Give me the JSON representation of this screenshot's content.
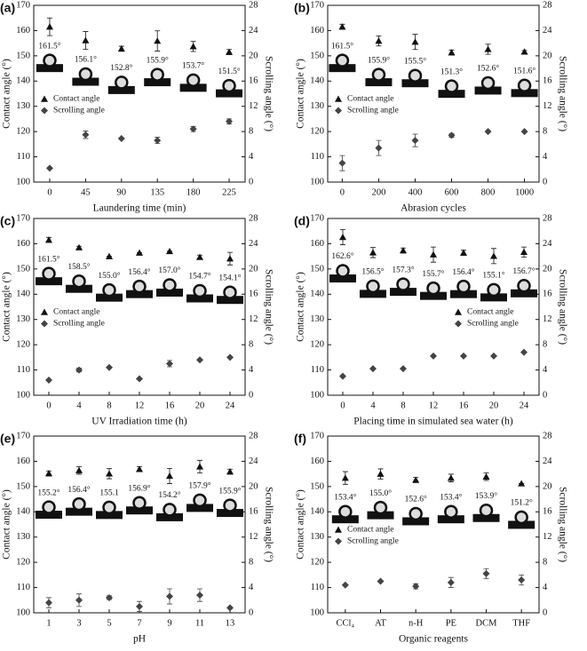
{
  "chart_data": [
    {
      "type": "scatter",
      "panel_label": "(a)",
      "x_label": "Laundering time (min)",
      "y_label": "Contact angle (°)",
      "y2_label": "Scrolling angle (°)",
      "x": [
        0,
        45,
        90,
        135,
        180,
        225
      ],
      "xlim": [
        -20,
        245
      ],
      "xticks": [
        0,
        45,
        90,
        135,
        180,
        225
      ],
      "ylim": [
        100,
        170
      ],
      "yticks": [
        100,
        110,
        120,
        130,
        140,
        150,
        160,
        170
      ],
      "y2lim": [
        0,
        28
      ],
      "y2ticks": [
        0,
        4,
        8,
        12,
        16,
        20,
        24,
        28
      ],
      "legend": "center left",
      "series": [
        {
          "name": "Contact angle",
          "marker": "triangle",
          "color": "#111111",
          "values": [
            161.5,
            156.1,
            152.8,
            155.9,
            153.7,
            151.5
          ],
          "value_labels": [
            "161.5°",
            "156.1°",
            "152.8°",
            "155.9°",
            "153.7°",
            "151.5°"
          ],
          "errors": [
            3.5,
            3.5,
            1,
            4,
            2,
            1
          ]
        },
        {
          "name": "Scrolling angle",
          "axis": "y2",
          "marker": "diamond",
          "color": "#444444",
          "values": [
            2.2,
            7.5,
            6.9,
            6.6,
            8.4,
            9.6
          ],
          "errors": [
            0,
            0.6,
            0,
            0.5,
            0.4,
            0.4
          ]
        }
      ]
    },
    {
      "type": "scatter",
      "panel_label": "(b)",
      "x_label": "Abrasion cycles",
      "y_label": "Contact angle (°)",
      "y2_label": "Scrolling angle (°)",
      "x": [
        0,
        200,
        400,
        600,
        800,
        1000
      ],
      "xlim": [
        -80,
        1080
      ],
      "xticks": [
        0,
        200,
        400,
        600,
        800,
        1000
      ],
      "ylim": [
        100,
        170
      ],
      "yticks": [
        100,
        110,
        120,
        130,
        140,
        150,
        160,
        170
      ],
      "y2lim": [
        0,
        28
      ],
      "y2ticks": [
        0,
        4,
        8,
        12,
        16,
        20,
        24,
        28
      ],
      "legend": "center left",
      "series": [
        {
          "name": "Contact angle",
          "marker": "triangle",
          "color": "#111111",
          "values": [
            161.5,
            155.9,
            155.5,
            151.3,
            152.6,
            151.6
          ],
          "value_labels": [
            "161.5°",
            "155.9°",
            "155.5°",
            "151.3°",
            "152.6°",
            "151.6°"
          ],
          "errors": [
            1,
            2,
            3,
            1,
            2,
            0.5
          ]
        },
        {
          "name": "Scrolling angle",
          "axis": "y2",
          "marker": "diamond",
          "color": "#444444",
          "values": [
            3.0,
            5.4,
            6.6,
            7.4,
            8.0,
            8.0
          ],
          "errors": [
            1.2,
            1.2,
            1.0,
            0.3,
            0,
            0
          ]
        }
      ]
    },
    {
      "type": "scatter",
      "panel_label": "(c)",
      "x_label": "UV Irradiation time (h)",
      "y_label": "Contact angle (°)",
      "y2_label": "Scrolling angle (°)",
      "x": [
        0,
        4,
        8,
        12,
        16,
        20,
        24
      ],
      "xlim": [
        -2,
        26
      ],
      "xticks": [
        0,
        4,
        8,
        12,
        16,
        20,
        24
      ],
      "ylim": [
        100,
        170
      ],
      "yticks": [
        100,
        110,
        120,
        130,
        140,
        150,
        160,
        170
      ],
      "y2lim": [
        0,
        28
      ],
      "y2ticks": [
        0,
        4,
        8,
        12,
        16,
        20,
        24,
        28
      ],
      "legend": "center left",
      "series": [
        {
          "name": "Contact angle",
          "marker": "triangle",
          "color": "#111111",
          "values": [
            161.5,
            158.5,
            155.0,
            156.4,
            157.0,
            154.7,
            154.1
          ],
          "value_labels": [
            "161.5°",
            "158.5°",
            "155.0°",
            "156.4°",
            "157.0°",
            "154.7°",
            "154.1°"
          ],
          "errors": [
            1,
            0.5,
            0,
            0,
            0,
            0.8,
            2.5
          ]
        },
        {
          "name": "Scrolling angle",
          "axis": "y2",
          "marker": "diamond",
          "color": "#444444",
          "values": [
            2.4,
            4.0,
            4.4,
            2.6,
            5.0,
            5.6,
            6.0
          ],
          "errors": [
            0,
            0.3,
            0,
            0,
            0.5,
            0,
            0
          ]
        }
      ]
    },
    {
      "type": "scatter",
      "panel_label": "(d)",
      "x_label": "Placing time in simulated sea water (h)",
      "y_label": "Contact angle (°)",
      "y2_label": "Scrolling angle (°)",
      "x": [
        0,
        4,
        8,
        12,
        16,
        20,
        24
      ],
      "xlim": [
        -2,
        26
      ],
      "xticks": [
        0,
        4,
        8,
        12,
        16,
        20,
        24
      ],
      "ylim": [
        100,
        170
      ],
      "yticks": [
        100,
        110,
        120,
        130,
        140,
        150,
        160,
        170
      ],
      "y2lim": [
        0,
        28
      ],
      "y2ticks": [
        0,
        4,
        8,
        12,
        16,
        20,
        24,
        28
      ],
      "legend": "center right",
      "series": [
        {
          "name": "Contact angle",
          "marker": "triangle",
          "color": "#111111",
          "values": [
            162.6,
            156.5,
            157.3,
            155.7,
            156.4,
            155.1,
            156.7
          ],
          "value_labels": [
            "162.6°",
            "156.5°",
            "157.3°",
            "155.7°",
            "156.4°",
            "155.1°",
            "156.7°"
          ],
          "errors": [
            3,
            2,
            1,
            3,
            1,
            3,
            2
          ]
        },
        {
          "name": "Scrolling angle",
          "axis": "y2",
          "marker": "diamond",
          "color": "#444444",
          "values": [
            3.0,
            4.2,
            4.2,
            6.2,
            6.2,
            6.2,
            6.8
          ],
          "errors": [
            0,
            0,
            0,
            0,
            0,
            0,
            0
          ]
        }
      ]
    },
    {
      "type": "scatter",
      "panel_label": "(e)",
      "x_label": "pH",
      "y_label": "Contact angle (°)",
      "y2_label": "Scrolling angle (°)",
      "x": [
        1,
        3,
        5,
        7,
        9,
        11,
        13
      ],
      "xlim": [
        0,
        14
      ],
      "xticks": [
        1,
        3,
        5,
        7,
        9,
        11,
        13
      ],
      "ylim": [
        100,
        170
      ],
      "yticks": [
        100,
        110,
        120,
        130,
        140,
        150,
        160,
        170
      ],
      "y2lim": [
        0,
        28
      ],
      "y2ticks": [
        0,
        4,
        8,
        12,
        16,
        20,
        24,
        28
      ],
      "series": [
        {
          "name": "Contact angle",
          "marker": "triangle",
          "color": "#111111",
          "values": [
            155.2,
            156.4,
            155.1,
            156.9,
            154.2,
            157.9,
            155.9
          ],
          "value_labels": [
            "155.2°",
            "156.4°",
            "155.1",
            "156.9°",
            "154.2°",
            "157.9°",
            "155.9°"
          ],
          "errors": [
            1,
            1.5,
            2,
            1,
            3,
            2.5,
            1
          ]
        },
        {
          "name": "Scrolling angle",
          "axis": "y2",
          "marker": "diamond",
          "color": "#444444",
          "values": [
            1.6,
            2.0,
            2.4,
            1.0,
            2.6,
            2.8,
            0.8
          ],
          "errors": [
            0.8,
            1.0,
            0.3,
            0.8,
            1.2,
            1.0,
            0
          ]
        }
      ]
    },
    {
      "type": "scatter",
      "panel_label": "(f)",
      "x_label": "Organic reagents",
      "y_label": "Contact angle (°)",
      "y2_label": "Scrolling angle (°)",
      "categories": [
        "CCl₄",
        "AT",
        "n-H",
        "PE",
        "DCM",
        "THF"
      ],
      "ylim": [
        100,
        170
      ],
      "yticks": [
        100,
        110,
        120,
        130,
        140,
        150,
        160,
        170
      ],
      "y2lim": [
        0,
        28
      ],
      "y2ticks": [
        0,
        4,
        8,
        12,
        16,
        20,
        24,
        28
      ],
      "legend": "center left",
      "series": [
        {
          "name": "Contact angle",
          "marker": "triangle",
          "color": "#111111",
          "values": [
            153.4,
            155.0,
            152.6,
            153.4,
            153.9,
            151.2
          ],
          "value_labels": [
            "153.4°",
            "155.0°",
            "152.6°",
            "153.4°",
            "153.9°",
            "151.2°"
          ],
          "errors": [
            2.5,
            2,
            1,
            1.5,
            1.5,
            0
          ]
        },
        {
          "name": "Scrolling angle",
          "axis": "y2",
          "marker": "diamond",
          "color": "#444444",
          "values": [
            4.4,
            5.0,
            4.2,
            4.8,
            6.2,
            5.2
          ],
          "errors": [
            0,
            0,
            0.4,
            0.8,
            0.8,
            0.8
          ]
        }
      ]
    }
  ]
}
